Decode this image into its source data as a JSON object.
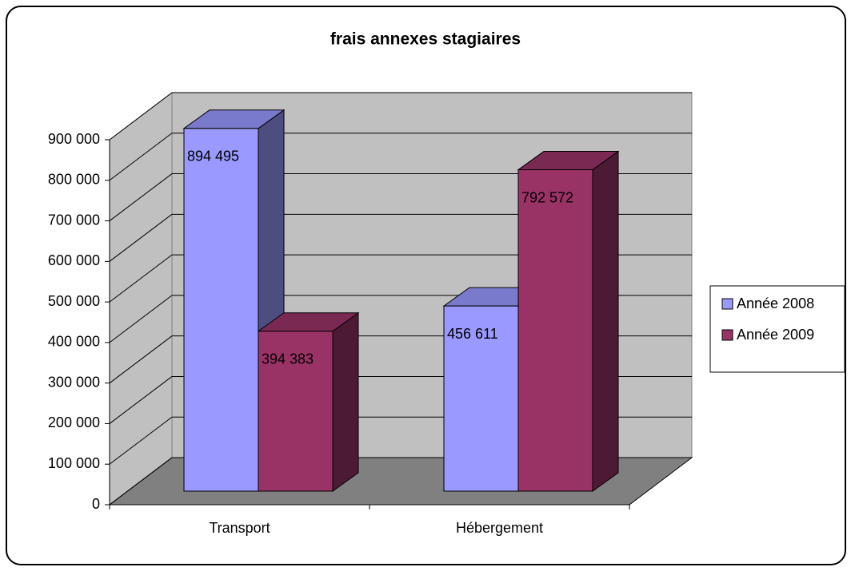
{
  "chart_data": {
    "type": "bar3d",
    "title": "frais annexes stagiaires",
    "categories": [
      "Transport",
      "Hébergement"
    ],
    "series": [
      {
        "name": "Année 2008",
        "color": "#9999ff",
        "values": [
          894495,
          456611
        ],
        "value_labels": [
          "894 495",
          "456 611"
        ]
      },
      {
        "name": "Année 2009",
        "color": "#993366",
        "values": [
          394383,
          792572
        ],
        "value_labels": [
          "394 383",
          "792 572"
        ]
      }
    ],
    "ylim": [
      0,
      900000
    ],
    "yticks": [
      {
        "value": 0,
        "label": "0"
      },
      {
        "value": 100000,
        "label": "100 000"
      },
      {
        "value": 200000,
        "label": "200 000"
      },
      {
        "value": 300000,
        "label": "300 000"
      },
      {
        "value": 400000,
        "label": "400 000"
      },
      {
        "value": 500000,
        "label": "500 000"
      },
      {
        "value": 600000,
        "label": "600 000"
      },
      {
        "value": 700000,
        "label": "700 000"
      },
      {
        "value": 800000,
        "label": "800 000"
      },
      {
        "value": 900000,
        "label": "900 000"
      }
    ],
    "grid": true,
    "legend": "right"
  }
}
